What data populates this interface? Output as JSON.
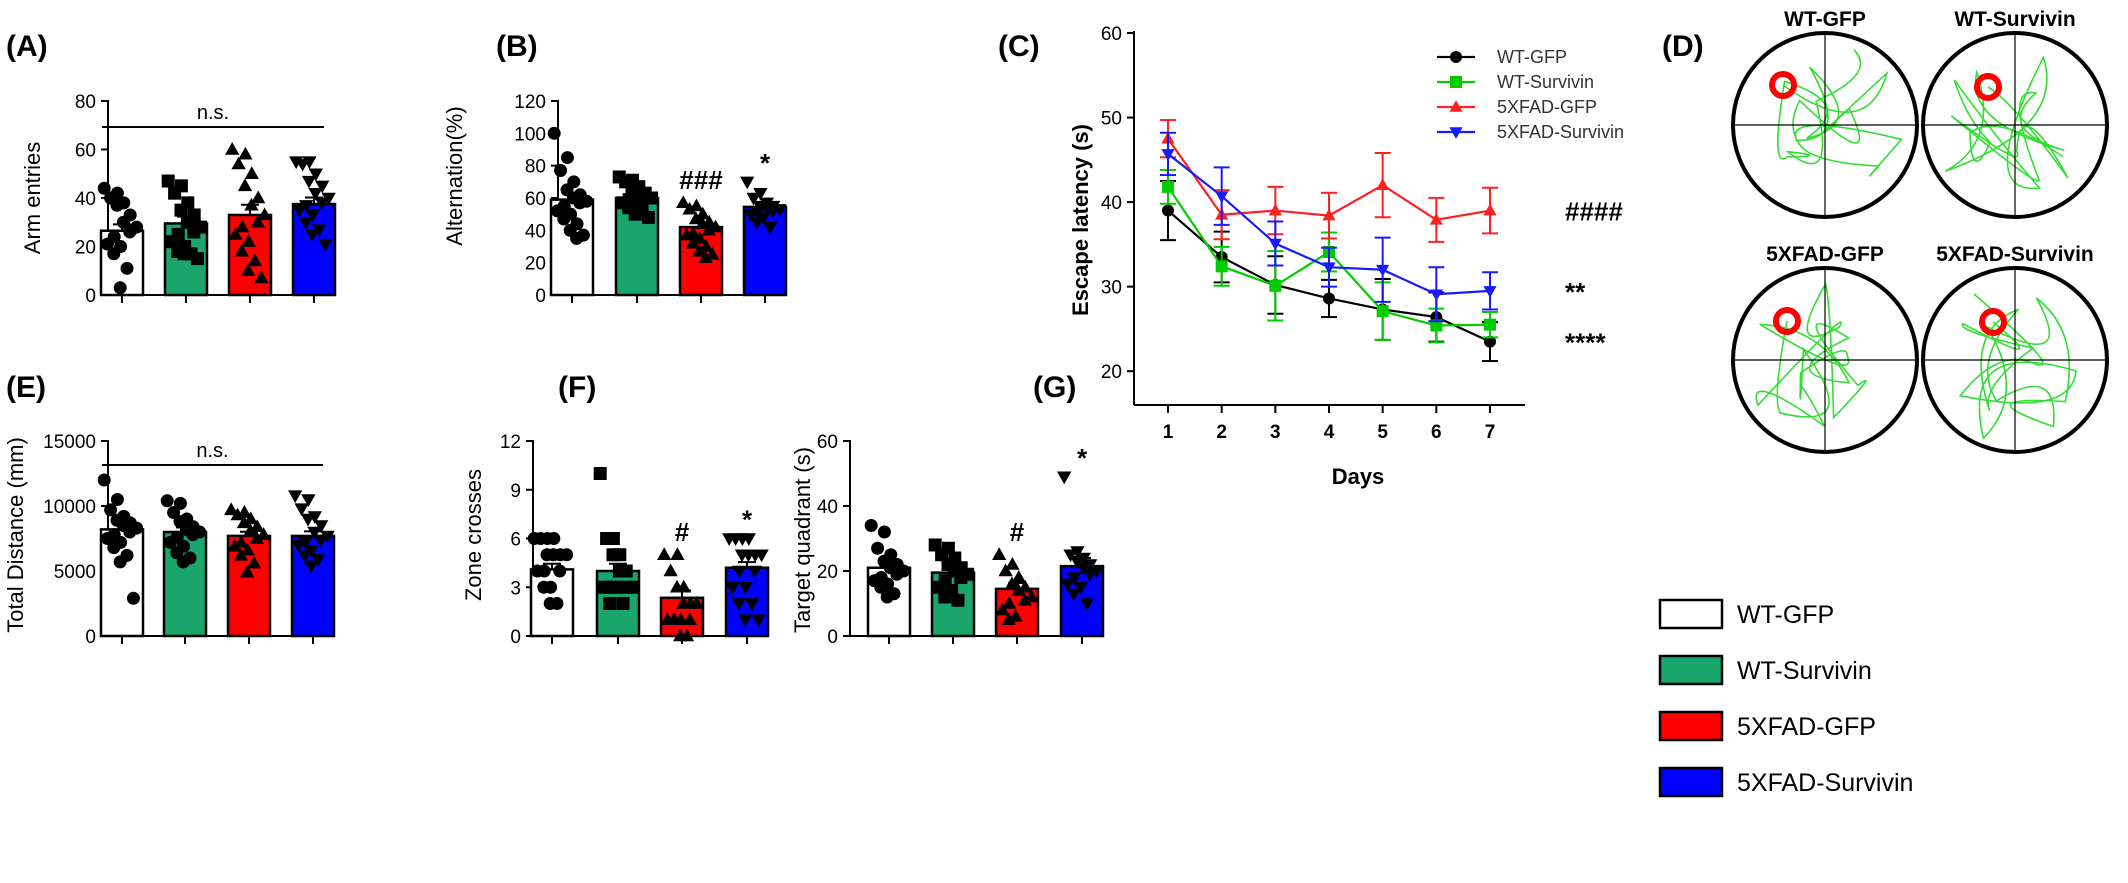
{
  "colors": {
    "WT-GFP": "#ffffff",
    "WT-Survivin": "#1aa56b",
    "5XFAD-GFP": "#ff0000",
    "5XFAD-Survivin": "#0000ff",
    "line_WT-GFP": "#000000",
    "line_WT-Survivin": "#00cc00",
    "line_5XFAD-GFP": "#ff2020",
    "line_5XFAD-Survivin": "#1a1aff",
    "track": "#33dd33",
    "platform": "#ff0000"
  },
  "legend": {
    "items": [
      "WT-GFP",
      "WT-Survivin",
      "5XFAD-GFP",
      "5XFAD-Survivin"
    ]
  },
  "maze": {
    "label": "(D)",
    "titles": [
      "WT-GFP",
      "WT-Survivin",
      "5XFAD-GFP",
      "5XFAD-Survivin"
    ]
  },
  "chart_data": [
    {
      "id": "A",
      "label": "(A)",
      "type": "bar",
      "categories": [
        "WT-GFP",
        "WT-Survivin",
        "5XFAD-GFP",
        "5XFAD-Survivin"
      ],
      "values": [
        26.5,
        29.5,
        33,
        37.5
      ],
      "errors": [
        2.6,
        2.8,
        4.2,
        2.7
      ],
      "markers": [
        "circle",
        "square",
        "triangle",
        "triangle-down"
      ],
      "points": [
        [
          44,
          42,
          40,
          38,
          37,
          33,
          30,
          28,
          26,
          24,
          21,
          20,
          17,
          11,
          3
        ],
        [
          47,
          45,
          42,
          38,
          35,
          33,
          30,
          28,
          26,
          25,
          22,
          20,
          18,
          17,
          17,
          15
        ],
        [
          60,
          58,
          54,
          50,
          45,
          40,
          37,
          33,
          30,
          28,
          25,
          22,
          18,
          14,
          10,
          7
        ],
        [
          55,
          55,
          54,
          50,
          47,
          45,
          42,
          40,
          38,
          37,
          35,
          33,
          30,
          27,
          25,
          21
        ]
      ],
      "ylabel": "Arm entries",
      "ylim": [
        0,
        80
      ],
      "yticks": [
        0,
        20,
        40,
        60,
        80
      ],
      "annotations": [
        "",
        "",
        "",
        ""
      ],
      "bracket": "n.s."
    },
    {
      "id": "B",
      "label": "(B)",
      "type": "bar",
      "categories": [
        "WT-GFP",
        "WT-Survivin",
        "5XFAD-GFP",
        "5XFAD-Survivin"
      ],
      "values": [
        59,
        60,
        42,
        54.5
      ],
      "errors": [
        4.3,
        2.0,
        2.8,
        2.5
      ],
      "markers": [
        "circle",
        "square",
        "triangle",
        "triangle-down"
      ],
      "points": [
        [
          100,
          85,
          77,
          70,
          65,
          62,
          60,
          58,
          57,
          55,
          52,
          50,
          47,
          44,
          40,
          37,
          35
        ],
        [
          73,
          71,
          70,
          67,
          65,
          63,
          62,
          60,
          60,
          59,
          57,
          55,
          54,
          52,
          50,
          48
        ],
        [
          57,
          55,
          53,
          50,
          47,
          45,
          44,
          42,
          40,
          38,
          37,
          35,
          32,
          30,
          27,
          25,
          23
        ],
        [
          70,
          63,
          60,
          57,
          55,
          55,
          54,
          53,
          52,
          51,
          50,
          48,
          45,
          42
        ]
      ],
      "ylabel": "Alternation(%)",
      "ylim": [
        0,
        120
      ],
      "yticks": [
        0,
        20,
        40,
        60,
        80,
        100,
        120
      ],
      "annotations": [
        "",
        "",
        "###",
        "*"
      ],
      "bracket": ""
    },
    {
      "id": "C",
      "label": "(C)",
      "type": "line",
      "x": [
        1,
        2,
        3,
        4,
        5,
        6,
        7
      ],
      "series": [
        {
          "name": "WT-GFP",
          "marker": "circle",
          "values": [
            39,
            33.5,
            30.2,
            28.6,
            27.3,
            26.4,
            23.5
          ],
          "errors": [
            3.5,
            3.0,
            3.4,
            2.2,
            3.6,
            2.9,
            2.3
          ]
        },
        {
          "name": "WT-Survivin",
          "marker": "square",
          "values": [
            41.8,
            32.4,
            30.1,
            34.1,
            27.1,
            25.4,
            25.5
          ],
          "errors": [
            2.0,
            2.3,
            4.1,
            2.3,
            3.4,
            2.0,
            1.5
          ]
        },
        {
          "name": "5XFAD-GFP",
          "marker": "triangle",
          "values": [
            47.5,
            38.5,
            39,
            38.4,
            42,
            37.9,
            39
          ],
          "errors": [
            2.2,
            2.9,
            2.8,
            2.7,
            3.8,
            2.6,
            2.7
          ]
        },
        {
          "name": "5XFAD-Survivin",
          "marker": "triangle-down",
          "values": [
            45.7,
            40.7,
            35.1,
            32.3,
            32.0,
            29.1,
            29.5
          ],
          "errors": [
            2.5,
            3.4,
            2.6,
            2.3,
            3.8,
            3.2,
            2.2
          ]
        }
      ],
      "xlabel": "Days",
      "ylabel": "Escape latency (s)",
      "xlim": [
        0.5,
        7.5
      ],
      "ylim": [
        16,
        60
      ],
      "yticks": [
        20,
        30,
        40,
        50,
        60
      ],
      "xticks": [
        1,
        2,
        3,
        4,
        5,
        6,
        7
      ],
      "end_annotations": [
        "****",
        "",
        "####",
        "**"
      ],
      "legend_position": "top-right"
    },
    {
      "id": "E",
      "label": "(E)",
      "type": "bar",
      "categories": [
        "WT-GFP",
        "WT-Survivin",
        "5XFAD-GFP",
        "5XFAD-Survivin"
      ],
      "values": [
        8200,
        8000,
        7700,
        7700
      ],
      "errors": [
        500,
        350,
        320,
        350
      ],
      "markers": [
        "circle",
        "circle",
        "triangle",
        "triangle-down"
      ],
      "points": [
        [
          12000,
          10500,
          9700,
          9200,
          8900,
          8700,
          8500,
          8300,
          8000,
          7800,
          7500,
          7200,
          6800,
          6200,
          5700,
          2900
        ],
        [
          10400,
          10200,
          9500,
          9000,
          8800,
          8400,
          8200,
          8000,
          7800,
          7600,
          7200,
          6900,
          6400,
          6000,
          5700
        ],
        [
          9700,
          9500,
          9300,
          9000,
          8700,
          8400,
          8100,
          7800,
          7500,
          7200,
          6900,
          6600,
          6200,
          5600,
          4900
        ],
        [
          10800,
          10500,
          9800,
          9200,
          9000,
          8500,
          8000,
          7700,
          7400,
          7200,
          7000,
          6600,
          6200,
          5900,
          5400
        ]
      ],
      "ylabel": "Total Distance (mm)",
      "ylim": [
        0,
        15000
      ],
      "yticks": [
        0,
        5000,
        10000,
        15000
      ],
      "annotations": [
        "",
        "",
        "",
        ""
      ],
      "bracket": "n.s."
    },
    {
      "id": "F",
      "label": "(F)",
      "type": "bar",
      "categories": [
        "WT-GFP",
        "WT-Survivin",
        "5XFAD-GFP",
        "5XFAD-Survivin"
      ],
      "values": [
        4.1,
        4.0,
        2.35,
        4.2
      ],
      "errors": [
        0.35,
        0.45,
        0.45,
        0.35
      ],
      "markers": [
        "circle",
        "square",
        "triangle",
        "triangle-down"
      ],
      "points": [
        [
          6,
          6,
          6,
          6,
          5,
          5,
          5,
          5,
          4,
          4,
          4,
          3,
          3,
          2,
          2
        ],
        [
          10,
          6,
          6,
          5,
          5,
          4,
          4,
          3,
          3,
          3,
          3,
          3,
          2,
          2
        ],
        [
          5,
          5,
          4,
          3,
          3,
          2,
          2,
          2,
          1,
          1,
          1,
          1,
          1,
          0,
          0
        ],
        [
          6,
          6,
          6,
          6,
          5,
          5,
          5,
          5,
          4,
          4,
          3,
          3,
          2,
          2,
          1,
          1
        ]
      ],
      "ylabel": "Zone crosses",
      "ylim": [
        0,
        12
      ],
      "yticks": [
        0,
        3,
        6,
        9,
        12
      ],
      "annotations": [
        "",
        "",
        "#",
        "*"
      ],
      "bracket": ""
    },
    {
      "id": "G",
      "label": "(G)",
      "type": "bar",
      "categories": [
        "WT-GFP",
        "WT-Survivin",
        "5XFAD-GFP",
        "5XFAD-Survivin"
      ],
      "values": [
        21,
        19.5,
        14.5,
        21.5
      ],
      "errors": [
        1.7,
        1.5,
        1.8,
        2.5
      ],
      "markers": [
        "circle",
        "square",
        "triangle",
        "triangle-down"
      ],
      "points": [
        [
          34,
          32,
          27,
          25,
          23,
          22,
          21,
          20,
          19,
          18,
          17,
          16,
          15,
          13,
          12
        ],
        [
          28,
          27,
          25,
          24,
          22,
          21,
          20,
          19,
          18,
          17,
          15,
          14,
          12,
          11
        ],
        [
          25,
          22,
          20,
          18,
          16,
          15,
          14,
          12,
          11,
          10,
          8,
          6,
          5
        ],
        [
          49,
          26,
          25,
          24,
          23,
          22,
          21,
          20,
          19,
          18,
          16,
          15,
          13,
          10
        ]
      ],
      "ylabel": "Target quadrant (s)",
      "ylim": [
        0,
        60
      ],
      "yticks": [
        0,
        20,
        40,
        60
      ],
      "annotations": [
        "",
        "",
        "#",
        "*"
      ],
      "bracket": ""
    }
  ]
}
